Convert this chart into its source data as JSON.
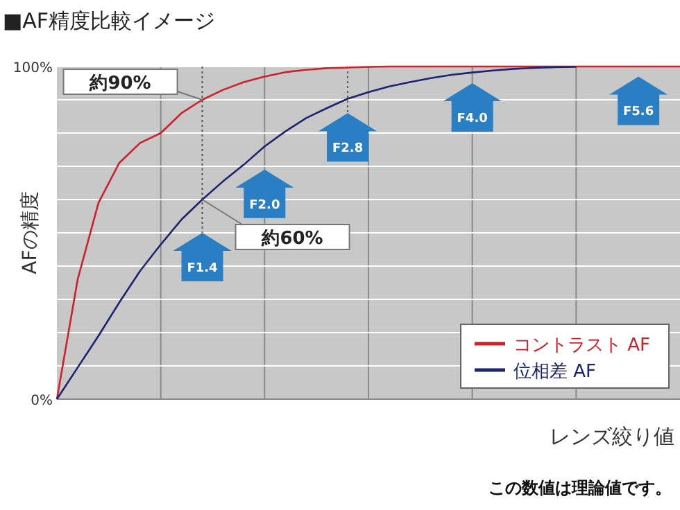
{
  "chart_data": {
    "type": "line",
    "title": "■AF精度比較イメージ",
    "xlabel": "レンズ絞り値",
    "ylabel": "AFの精度",
    "categories": [
      null,
      null,
      null,
      null,
      null,
      null,
      null,
      null,
      null,
      null,
      null,
      null,
      null,
      null,
      null,
      null,
      null,
      null,
      null,
      null,
      null,
      null,
      null,
      null,
      null,
      null,
      null,
      null,
      null,
      null,
      null
    ],
    "ylim": [
      0,
      100
    ],
    "yticks": [
      {
        "value": 0,
        "label": "0%"
      },
      {
        "value": 10,
        "label": null
      },
      {
        "value": 20,
        "label": null
      },
      {
        "value": 30,
        "label": null
      },
      {
        "value": 40,
        "label": null
      },
      {
        "value": 50,
        "label": null
      },
      {
        "value": 60,
        "label": null
      },
      {
        "value": 70,
        "label": null
      },
      {
        "value": 80,
        "label": null
      },
      {
        "value": 90,
        "label": null
      },
      {
        "value": 100,
        "label": "100%"
      }
    ],
    "grid": true,
    "legend": "bottom right",
    "series": [
      {
        "name": "コントラスト AF",
        "color": "#d0202a",
        "values": [
          0,
          36,
          59,
          71,
          77,
          80,
          86,
          90,
          93,
          95.3,
          97,
          98.3,
          99,
          99.5,
          99.7,
          99.9,
          100,
          100,
          100,
          100,
          100,
          100,
          100,
          100,
          100,
          100,
          100,
          100,
          100,
          100,
          100
        ]
      },
      {
        "name": "位相差 AF",
        "color": "#1c2472",
        "values": [
          0,
          9.5,
          19,
          29,
          38.5,
          46.5,
          54,
          60,
          65.5,
          70.5,
          76,
          80.5,
          84.5,
          87.5,
          90.3,
          92.3,
          94,
          95.3,
          96.5,
          97.5,
          98.2,
          98.8,
          99.3,
          99.6,
          99.8,
          99.9,
          null,
          null,
          null,
          null,
          null
        ]
      }
    ],
    "annotations": [
      "約90%",
      "約60%",
      "F1.4",
      "F2.0",
      "F2.8",
      "F4.0",
      "F5.6",
      "この数値は理論値です。"
    ]
  }
}
